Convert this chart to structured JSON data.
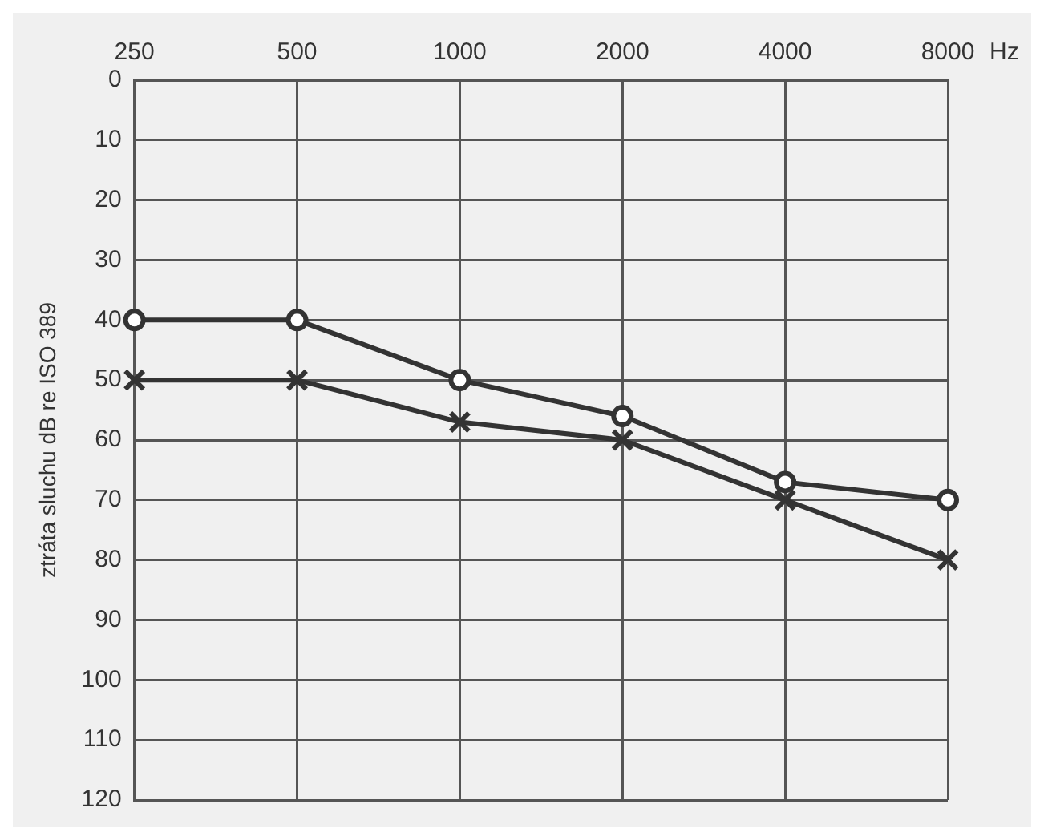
{
  "chart_data": {
    "type": "line",
    "ylabel": "ztráta sluchu dB re ISO 389",
    "xlabel": "Hz",
    "categories": [
      "250",
      "500",
      "1000",
      "2000",
      "4000",
      "8000"
    ],
    "series": [
      {
        "color": "#333333",
        "marker": "circle",
        "values": [
          40,
          40,
          50,
          56,
          67,
          70
        ]
      },
      {
        "color": "#333333",
        "marker": "cross",
        "values": [
          50,
          50,
          57,
          60,
          70,
          80
        ]
      }
    ],
    "ylim": [
      120,
      0
    ],
    "yticks": [
      0,
      10,
      20,
      30,
      40,
      50,
      60,
      70,
      80,
      90,
      100,
      110,
      120
    ],
    "grid": true,
    "legend": false,
    "line_style": "solid"
  }
}
